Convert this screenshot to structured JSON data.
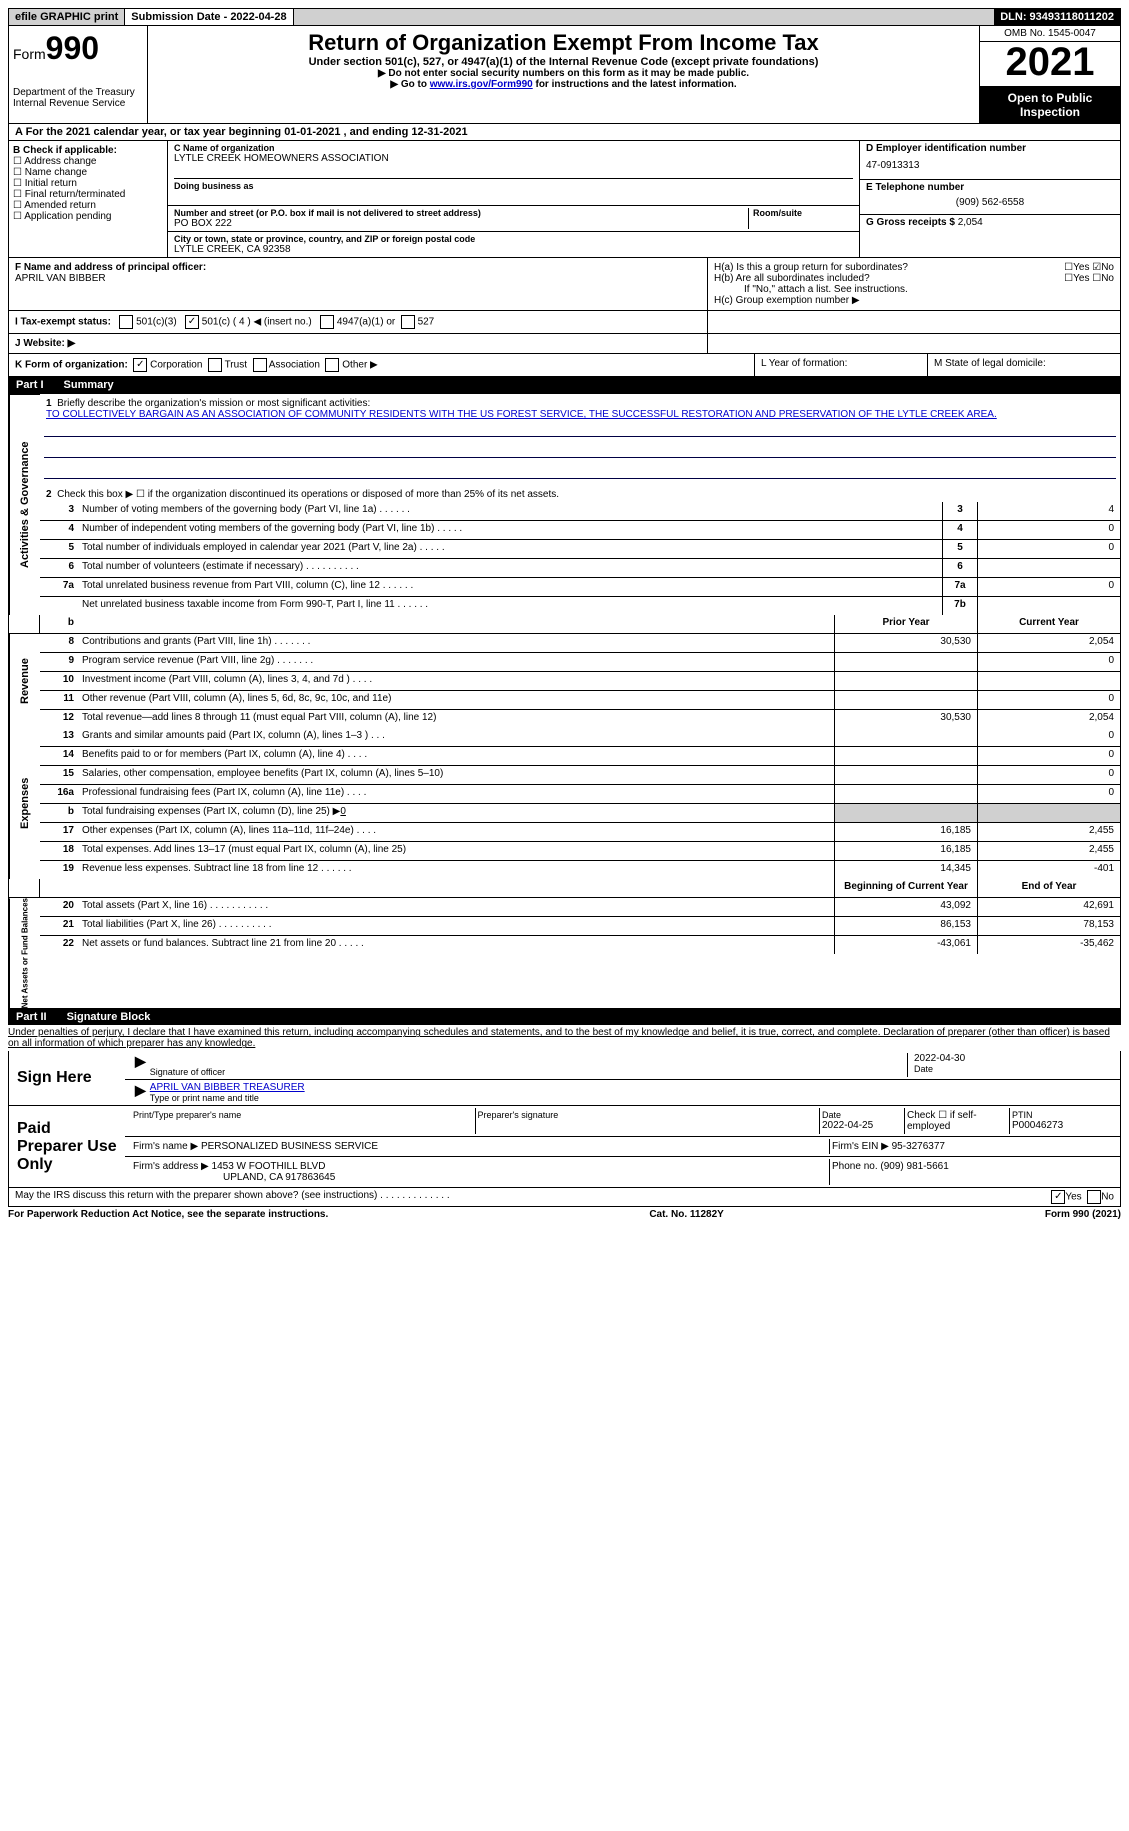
{
  "topbar": {
    "efile": "efile GRAPHIC print",
    "submission_label": "Submission Date - 2022-04-28",
    "dln": "DLN: 93493118011202"
  },
  "header": {
    "form_word": "Form",
    "form_num": "990",
    "dept": "Department of the Treasury\nInternal Revenue Service",
    "title": "Return of Organization Exempt From Income Tax",
    "sub": "Under section 501(c), 527, or 4947(a)(1) of the Internal Revenue Code (except private foundations)",
    "note1": "▶ Do not enter social security numbers on this form as it may be made public.",
    "note2_pre": "▶ Go to ",
    "note2_link": "www.irs.gov/Form990",
    "note2_post": " for instructions and the latest information.",
    "omb": "OMB No. 1545-0047",
    "year": "2021",
    "inspect": "Open to Public Inspection"
  },
  "line_a": "A For the 2021 calendar year, or tax year beginning 01-01-2021   , and ending 12-31-2021",
  "box_b": {
    "title": "B Check if applicable:",
    "opts": [
      "Address change",
      "Name change",
      "Initial return",
      "Final return/terminated",
      "Amended return",
      "Application pending"
    ]
  },
  "box_c": {
    "name_label": "C Name of organization",
    "name": "LYTLE CREEK HOMEOWNERS ASSOCIATION",
    "dba_label": "Doing business as",
    "addr_label": "Number and street (or P.O. box if mail is not delivered to street address)",
    "room_label": "Room/suite",
    "addr": "PO BOX 222",
    "city_label": "City or town, state or province, country, and ZIP or foreign postal code",
    "city": "LYTLE CREEK, CA  92358"
  },
  "box_d": {
    "label": "D Employer identification number",
    "val": "47-0913313"
  },
  "box_e": {
    "label": "E Telephone number",
    "val": "(909) 562-6558"
  },
  "box_g": {
    "label": "G Gross receipts $",
    "val": "2,054"
  },
  "box_f": {
    "label": "F Name and address of principal officer:",
    "val": "APRIL VAN BIBBER"
  },
  "box_h": {
    "a": "H(a)  Is this a group return for subordinates?",
    "b": "H(b)  Are all subordinates included?",
    "note": "If \"No,\" attach a list. See instructions.",
    "c": "H(c)  Group exemption number ▶"
  },
  "box_i": {
    "label": "I   Tax-exempt status:",
    "o1": "501(c)(3)",
    "o2": "501(c) ( 4 ) ◀ (insert no.)",
    "o3": "4947(a)(1) or",
    "o4": "527"
  },
  "box_j": "J   Website: ▶",
  "box_k": {
    "label": "K Form of organization:",
    "o1": "Corporation",
    "o2": "Trust",
    "o3": "Association",
    "o4": "Other ▶"
  },
  "box_l": "L Year of formation:",
  "box_m": "M State of legal domicile:",
  "part1": {
    "title_num": "Part I",
    "title": "Summary",
    "q1_label": "Briefly describe the organization's mission or most significant activities:",
    "q1_val": "TO COLLECTIVELY BARGAIN AS AN ASSOCIATION OF COMMUNITY RESIDENTS WITH THE US FOREST SERVICE, THE SUCCESSFUL RESTORATION AND PRESERVATION OF THE LYTLE CREEK AREA.",
    "q2": "Check this box ▶ ☐ if the organization discontinued its operations or disposed of more than 25% of its net assets.",
    "sides": [
      "Activities & Governance",
      "Revenue",
      "Expenses",
      "Net Assets or Fund Balances"
    ],
    "col_prior": "Prior Year",
    "col_current": "Current Year",
    "col_begin": "Beginning of Current Year",
    "col_end": "End of Year",
    "rows_top": [
      {
        "n": "3",
        "t": "Number of voting members of the governing body (Part VI, line 1a)   .    .    .    .    .    .",
        "box": "3",
        "v": "4"
      },
      {
        "n": "4",
        "t": "Number of independent voting members of the governing body (Part VI, line 1b)   .    .    .    .    .",
        "box": "4",
        "v": "0"
      },
      {
        "n": "5",
        "t": "Total number of individuals employed in calendar year 2021 (Part V, line 2a)   .    .    .    .    .",
        "box": "5",
        "v": "0"
      },
      {
        "n": "6",
        "t": "Total number of volunteers (estimate if necessary)    .    .    .    .    .    .    .    .    .    .",
        "box": "6",
        "v": ""
      },
      {
        "n": "7a",
        "t": "Total unrelated business revenue from Part VIII, column (C), line 12   .    .    .    .    .    .",
        "box": "7a",
        "v": "0"
      },
      {
        "n": "",
        "t": "Net unrelated business taxable income from Form 990-T, Part I, line 11   .    .    .    .    .    .",
        "box": "7b",
        "v": ""
      }
    ],
    "rows_rev": [
      {
        "n": "8",
        "t": "Contributions and grants (Part VIII, line 1h)   .    .    .    .    .    .    .",
        "p": "30,530",
        "c": "2,054"
      },
      {
        "n": "9",
        "t": "Program service revenue (Part VIII, line 2g)   .    .    .    .    .    .    .",
        "p": "",
        "c": "0"
      },
      {
        "n": "10",
        "t": "Investment income (Part VIII, column (A), lines 3, 4, and 7d )   .    .    .    .",
        "p": "",
        "c": ""
      },
      {
        "n": "11",
        "t": "Other revenue (Part VIII, column (A), lines 5, 6d, 8c, 9c, 10c, and 11e)",
        "p": "",
        "c": "0"
      },
      {
        "n": "12",
        "t": "Total revenue—add lines 8 through 11 (must equal Part VIII, column (A), line 12)",
        "p": "30,530",
        "c": "2,054"
      }
    ],
    "rows_exp": [
      {
        "n": "13",
        "t": "Grants and similar amounts paid (Part IX, column (A), lines 1–3 )   .    .    .",
        "p": "",
        "c": "0"
      },
      {
        "n": "14",
        "t": "Benefits paid to or for members (Part IX, column (A), line 4)   .    .    .    .",
        "p": "",
        "c": "0"
      },
      {
        "n": "15",
        "t": "Salaries, other compensation, employee benefits (Part IX, column (A), lines 5–10)",
        "p": "",
        "c": "0"
      },
      {
        "n": "16a",
        "t": "Professional fundraising fees (Part IX, column (A), line 11e)   .    .    .    .",
        "p": "",
        "c": "0"
      },
      {
        "n": "b",
        "t": "Total fundraising expenses (Part IX, column (D), line 25) ▶",
        "p": "__grey__",
        "c": "__grey__",
        "extra": "0"
      },
      {
        "n": "17",
        "t": "Other expenses (Part IX, column (A), lines 11a–11d, 11f–24e)   .    .    .    .",
        "p": "16,185",
        "c": "2,455"
      },
      {
        "n": "18",
        "t": "Total expenses. Add lines 13–17 (must equal Part IX, column (A), line 25)",
        "p": "16,185",
        "c": "2,455"
      },
      {
        "n": "19",
        "t": "Revenue less expenses. Subtract line 18 from line 12   .    .    .    .    .    .",
        "p": "14,345",
        "c": "-401"
      }
    ],
    "rows_net": [
      {
        "n": "20",
        "t": "Total assets (Part X, line 16)   .    .    .    .    .    .    .    .    .    .    .",
        "p": "43,092",
        "c": "42,691"
      },
      {
        "n": "21",
        "t": "Total liabilities (Part X, line 26)   .    .    .    .    .    .    .    .    .    .",
        "p": "86,153",
        "c": "78,153"
      },
      {
        "n": "22",
        "t": "Net assets or fund balances. Subtract line 21 from line 20   .    .    .    .    .",
        "p": "-43,061",
        "c": "-35,462"
      }
    ]
  },
  "part2": {
    "title_num": "Part II",
    "title": "Signature Block",
    "decl": "Under penalties of perjury, I declare that I have examined this return, including accompanying schedules and statements, and to the best of my knowledge and belief, it is true, correct, and complete. Declaration of preparer (other than officer) is based on all information of which preparer has any knowledge.",
    "sign_here": "Sign Here",
    "sig_officer": "Signature of officer",
    "sig_date": "2022-04-30",
    "sig_date_label": "Date",
    "name_title": "APRIL VAN BIBBER  TREASURER",
    "name_title_label": "Type or print name and title",
    "paid": "Paid Preparer Use Only",
    "prep_name_label": "Print/Type preparer's name",
    "prep_sig_label": "Preparer's signature",
    "prep_date_label": "Date",
    "prep_date": "2022-04-25",
    "prep_check": "Check ☐ if self-employed",
    "ptin_label": "PTIN",
    "ptin": "P00046273",
    "firm_name_label": "Firm's name    ▶",
    "firm_name": "PERSONALIZED BUSINESS SERVICE",
    "firm_ein_label": "Firm's EIN ▶",
    "firm_ein": "95-3276377",
    "firm_addr_label": "Firm's address ▶",
    "firm_addr1": "1453 W FOOTHILL BLVD",
    "firm_addr2": "UPLAND, CA  917863645",
    "firm_phone_label": "Phone no.",
    "firm_phone": "(909) 981-5661",
    "discuss": "May the IRS discuss this return with the preparer shown above? (see instructions)   .    .    .    .    .    .    .    .    .    .    .    .    ."
  },
  "footer": {
    "left": "For Paperwork Reduction Act Notice, see the separate instructions.",
    "mid": "Cat. No. 11282Y",
    "right": "Form 990 (2021)"
  },
  "yesno": {
    "yes": "Yes",
    "no": "No"
  }
}
